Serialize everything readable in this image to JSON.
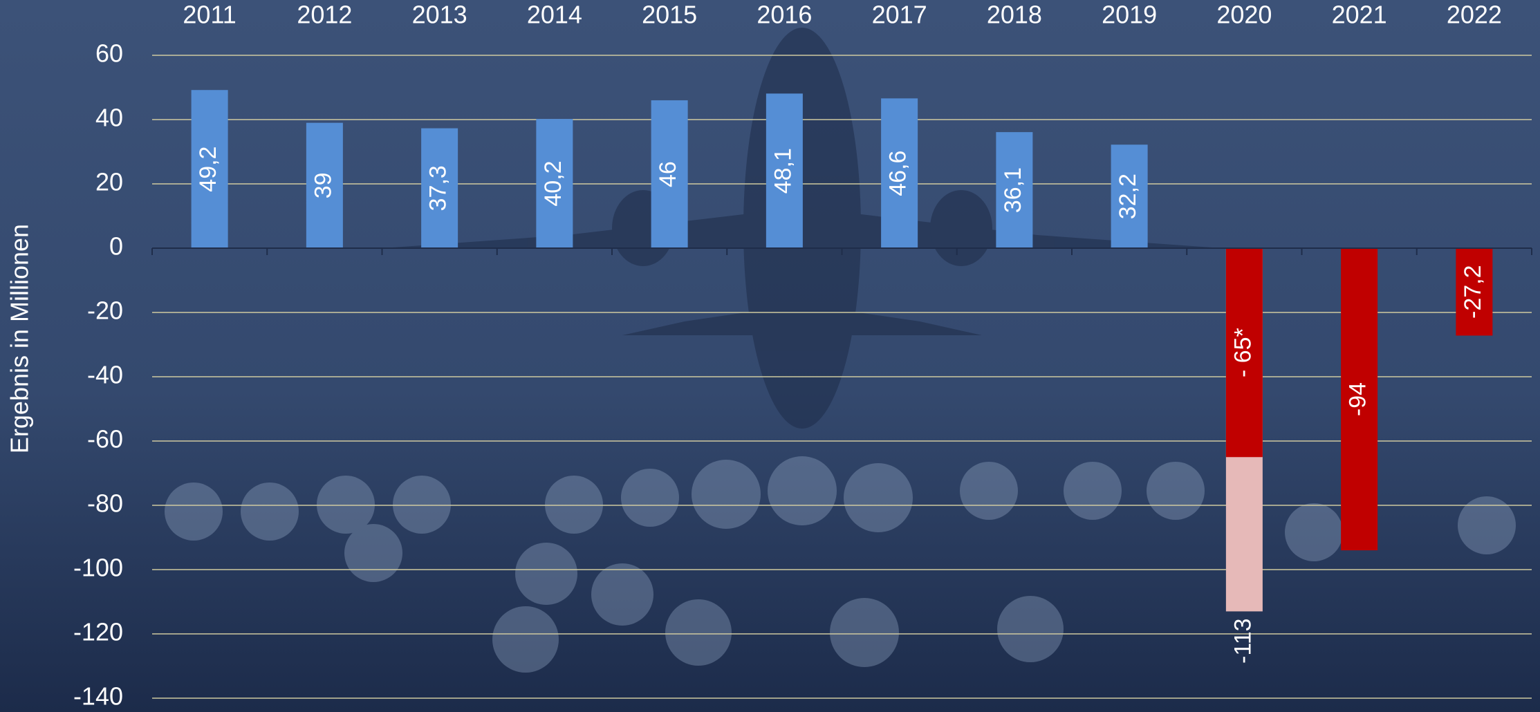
{
  "chart_data": {
    "type": "bar",
    "y_label": "Ergebnis in Millionen",
    "categories": [
      "2011",
      "2012",
      "2013",
      "2014",
      "2015",
      "2016",
      "2017",
      "2018",
      "2019",
      "2020",
      "2021",
      "2022"
    ],
    "series": [
      {
        "colors": [
          "#558ed5",
          "#558ed5",
          "#558ed5",
          "#558ed5",
          "#558ed5",
          "#558ed5",
          "#558ed5",
          "#558ed5",
          "#558ed5",
          "#c00000",
          "#c00000",
          "#c00000"
        ],
        "values": [
          49.2,
          39,
          37.3,
          40.2,
          46,
          48.1,
          46.6,
          36.1,
          32.2,
          -65,
          -94,
          -27.2
        ],
        "value_labels": [
          "49,2",
          "39",
          "37,3",
          "40,2",
          "46",
          "48,1",
          "46,6",
          "36,1",
          "32,2",
          "- 65*",
          "-94",
          "-27,2"
        ]
      },
      {
        "color": "#e6b9b8",
        "values": [
          null,
          null,
          null,
          null,
          null,
          null,
          null,
          null,
          null,
          -113,
          null,
          null
        ]
      }
    ],
    "ylim": [
      -140,
      60
    ],
    "yticks": [
      -140,
      -120,
      -100,
      -80,
      -60,
      -40,
      -20,
      0,
      20,
      40,
      60
    ],
    "grid": true
  }
}
